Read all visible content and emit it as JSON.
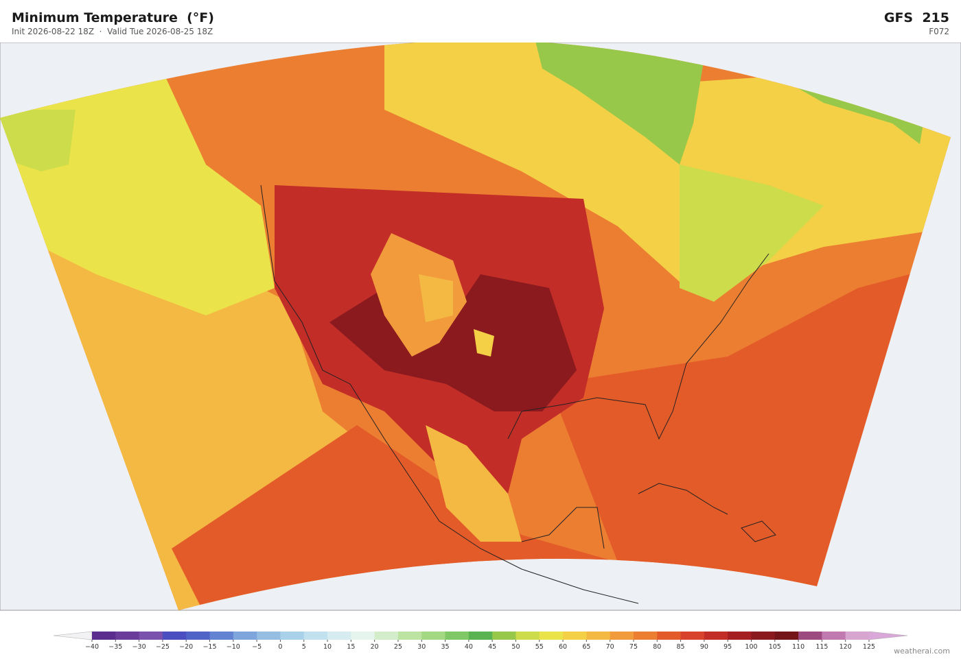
{
  "header": {
    "title": "Minimum Temperature  (°F)",
    "subtitle": "Init 2026-08-22 18Z  ·  Valid Tue 2026-08-25 18Z",
    "model": "GFS  215",
    "forecast_hour": "F072"
  },
  "colorbar": {
    "ticks": [
      {
        "value": -40,
        "label": "−40"
      },
      {
        "value": -35,
        "label": "−35"
      },
      {
        "value": -30,
        "label": "−30"
      },
      {
        "value": -25,
        "label": "−25"
      },
      {
        "value": -20,
        "label": "−20"
      },
      {
        "value": -15,
        "label": "−15"
      },
      {
        "value": -10,
        "label": "−10"
      },
      {
        "value": -5,
        "label": "−5"
      },
      0,
      5,
      10,
      15,
      20,
      25,
      30,
      35,
      40,
      45,
      50,
      55,
      60,
      65,
      70,
      75,
      80,
      85,
      90,
      95,
      100,
      105,
      110,
      115,
      120,
      125
    ],
    "colors": [
      "#5b2d8e",
      "#6a3d9a",
      "#7a52ad",
      "#4a4ec0",
      "#5064c8",
      "#6482d2",
      "#7ea5dc",
      "#95bee2",
      "#a9d1ea",
      "#c2e1ef",
      "#d7ecf1",
      "#e6f4ee",
      "#d3ecc9",
      "#bde3a3",
      "#a3d982",
      "#80c766",
      "#5ab352",
      "#98c84a",
      "#cddc4a",
      "#ebe34a",
      "#f3d046",
      "#f4b943",
      "#f29b3c",
      "#ec7e32",
      "#e45b2a",
      "#d9432b",
      "#c22d28",
      "#a51e22",
      "#8a1a1e",
      "#74151a",
      "#9c4a80",
      "#c07ab0",
      "#d7a6d0"
    ],
    "under_color": "#f2f2f4",
    "over_color": "#d9a8d8"
  },
  "footer": {
    "credit": "weatherai.com"
  }
}
